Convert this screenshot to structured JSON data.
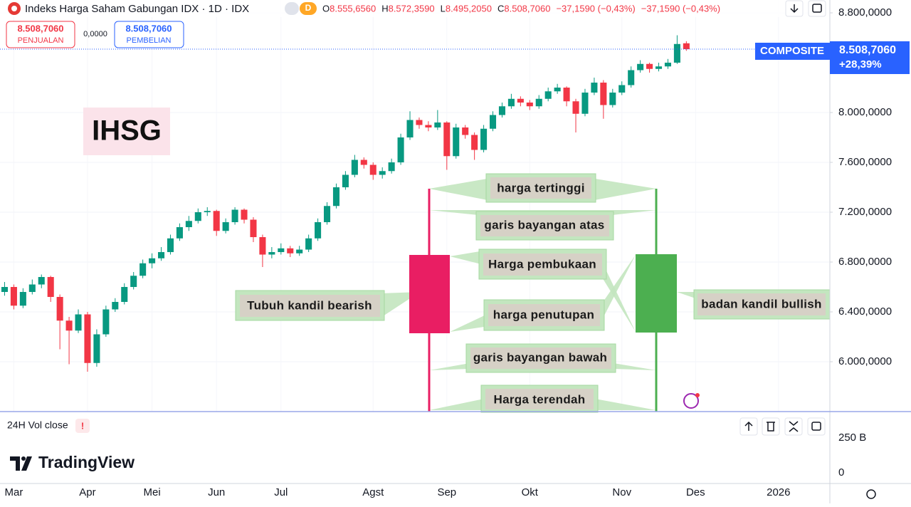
{
  "chart_data": {
    "type": "candlestick",
    "title": "Indeks Harga Saham Gabungan IDX · 1D · IDX",
    "interval_badge": "D",
    "ohlc_info": [
      {
        "key": "O",
        "value": "8.555,6560"
      },
      {
        "key": "H",
        "value": "8.572,3590"
      },
      {
        "key": "L",
        "value": "8.495,2050"
      },
      {
        "key": "C",
        "value": "8.508,7060"
      },
      {
        "key": "",
        "value": "−37,1590 (−0,43%)"
      },
      {
        "key": "",
        "value": "−37,1590 (−0,43%)"
      }
    ],
    "sell": {
      "price": "8.508,7060",
      "label": "PENJUALAN"
    },
    "spread": "0,0000",
    "buy": {
      "price": "8.508,7060",
      "label": "PEMBELIAN"
    },
    "price_tag": {
      "name": "COMPOSITE",
      "value": "8.508,7060",
      "change": "+28,39%"
    },
    "watermark": "IHSG",
    "up_color": "#089981",
    "down_color": "#f23645",
    "categories": [
      null,
      "Mar",
      null,
      null,
      null,
      null,
      null,
      null,
      null,
      "Apr",
      null,
      null,
      null,
      null,
      null,
      null,
      "Mei",
      null,
      null,
      null,
      null,
      null,
      null,
      "Jun",
      null,
      null,
      null,
      null,
      null,
      null,
      "Jul",
      null,
      null,
      null,
      null,
      null,
      null,
      null,
      null,
      null,
      "Agst",
      null,
      null,
      null,
      null,
      null,
      null,
      null,
      "Sep",
      null,
      null,
      null,
      null,
      null,
      null,
      null,
      null,
      "Okt",
      null,
      null,
      null,
      null,
      null,
      null,
      null,
      null,
      null,
      "Nov",
      null,
      null,
      null,
      null,
      null,
      null,
      null,
      "Des",
      null,
      null,
      null,
      null,
      null,
      null,
      null,
      null,
      "2026",
      null,
      null,
      null,
      null,
      null
    ],
    "series": [
      {
        "name": "COMPOSITE",
        "open": [
          6560,
          6600,
          6450,
          6560,
          6620,
          6680,
          6520,
          6330,
          6250,
          6380,
          5990,
          6220,
          6420,
          6480,
          6600,
          6690,
          6790,
          6830,
          6880,
          6990,
          7080,
          7130,
          7200,
          7210,
          7050,
          7120,
          7220,
          7140,
          7000,
          6860,
          6880,
          6910,
          6870,
          6900,
          6990,
          7120,
          7250,
          7400,
          7500,
          7620,
          7580,
          7500,
          7530,
          7600,
          7800,
          7940,
          7900,
          7880,
          7920,
          7650,
          7880,
          7820,
          7700,
          7870,
          7980,
          8050,
          8110,
          8080,
          8050,
          8110,
          8170,
          8200,
          8090,
          7990,
          8160,
          8240,
          8060,
          8160,
          8220,
          8340,
          8390,
          8350,
          8370,
          8400,
          8555.656,
          null,
          null,
          null,
          null,
          null,
          null,
          null,
          null,
          null,
          null,
          null,
          null,
          null,
          null,
          null
        ],
        "high": [
          6640,
          6620,
          6590,
          6660,
          6700,
          6690,
          6540,
          6360,
          6420,
          6400,
          6260,
          6450,
          6510,
          6630,
          6720,
          6820,
          6870,
          6920,
          7020,
          7110,
          7170,
          7230,
          7240,
          7220,
          7150,
          7240,
          7230,
          7160,
          7020,
          6920,
          6950,
          6930,
          6930,
          7020,
          7150,
          7280,
          7430,
          7530,
          7660,
          7640,
          7600,
          7560,
          7630,
          7830,
          8010,
          7960,
          7930,
          8020,
          7930,
          7910,
          7900,
          7840,
          7900,
          8010,
          8080,
          8150,
          8130,
          8100,
          8140,
          8200,
          8230,
          8210,
          8110,
          8190,
          8280,
          8260,
          8190,
          8250,
          8370,
          8420,
          8400,
          8400,
          8430,
          8620,
          8572.359,
          null,
          null,
          null,
          null,
          null,
          null,
          null,
          null,
          null,
          null,
          null,
          null,
          null,
          null,
          null
        ],
        "low": [
          6530,
          6420,
          6430,
          6540,
          6590,
          6480,
          6100,
          5980,
          6230,
          5920,
          5960,
          6200,
          6400,
          6460,
          6580,
          6670,
          6750,
          6810,
          6860,
          6970,
          7050,
          7110,
          7170,
          7010,
          7030,
          7100,
          7110,
          6960,
          6760,
          6830,
          6860,
          6840,
          6850,
          6880,
          6970,
          7100,
          7230,
          7380,
          7480,
          7550,
          7460,
          7470,
          7510,
          7580,
          7780,
          7870,
          7850,
          7860,
          7540,
          7630,
          7790,
          7620,
          7680,
          7850,
          7960,
          8030,
          8050,
          8020,
          8030,
          8090,
          8150,
          8050,
          7840,
          7970,
          8140,
          7950,
          8040,
          8140,
          8200,
          8320,
          8320,
          8330,
          8350,
          8390,
          8495.205,
          null,
          null,
          null,
          null,
          null,
          null,
          null,
          null,
          null,
          null,
          null,
          null,
          null,
          null,
          null
        ],
        "close": [
          6600,
          6450,
          6560,
          6620,
          6680,
          6520,
          6330,
          6250,
          6380,
          5990,
          6220,
          6420,
          6480,
          6600,
          6690,
          6790,
          6830,
          6880,
          6990,
          7080,
          7130,
          7200,
          7210,
          7050,
          7120,
          7220,
          7140,
          7000,
          6860,
          6880,
          6910,
          6870,
          6900,
          6990,
          7120,
          7250,
          7400,
          7500,
          7620,
          7580,
          7500,
          7530,
          7600,
          7800,
          7940,
          7900,
          7880,
          7920,
          7650,
          7880,
          7820,
          7700,
          7870,
          7980,
          8050,
          8110,
          8080,
          8050,
          8110,
          8170,
          8200,
          8090,
          7990,
          8160,
          8240,
          8060,
          8160,
          8220,
          8340,
          8390,
          8350,
          8370,
          8400,
          8550,
          8508.706,
          null,
          null,
          null,
          null,
          null,
          null,
          null,
          null,
          null,
          null,
          null,
          null,
          null,
          null,
          null
        ]
      }
    ],
    "ylim": [
      5600,
      8903
    ],
    "yticks": [
      {
        "value": 6000,
        "label": "6.000,0000"
      },
      {
        "value": 6400,
        "label": "6.400,0000"
      },
      {
        "value": 6800,
        "label": "6.800,0000"
      },
      {
        "value": 7200,
        "label": "7.200,0000"
      },
      {
        "value": 7600,
        "label": "7.600,0000"
      },
      {
        "value": 8000,
        "label": "8.000,0000"
      },
      {
        "value": 8800,
        "label": "8.800,0000"
      }
    ],
    "annotations": {
      "high": "harga tertinggi",
      "upper_shadow": "garis bayangan atas",
      "open": "Harga pembukaan",
      "close": "harga penutupan",
      "bearish_body": "Tubuh kandil bearish",
      "bullish_body": "badan kandil bullish",
      "lower_shadow": "garis bayangan bawah",
      "low": "Harga terendah"
    },
    "volume_pane": {
      "title": "24H Vol close",
      "alert": "!",
      "ticks": [
        "250 B",
        "0"
      ]
    },
    "brand": "TradingView"
  }
}
